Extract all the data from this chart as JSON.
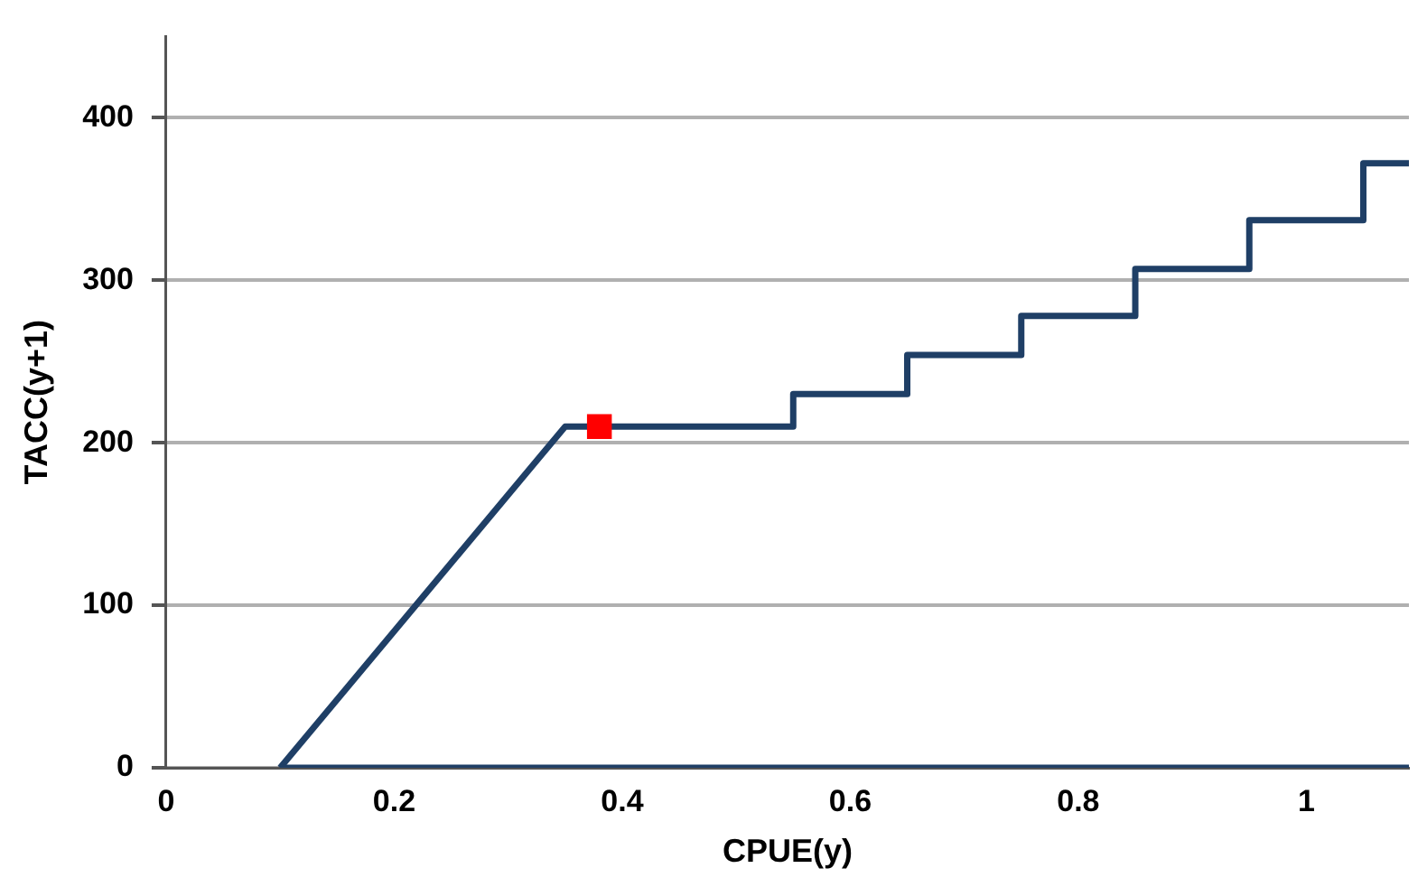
{
  "chart_data": {
    "type": "line",
    "xlabel": "CPUE(y)",
    "ylabel": "TACC(y+1)",
    "xlim": [
      0,
      1.09
    ],
    "xticks": [
      0,
      {
        "value": 0.2,
        "label": "0.2"
      },
      {
        "value": 0.4,
        "label": "0.4"
      },
      {
        "value": 0.6,
        "label": "0.6"
      },
      {
        "value": 0.8,
        "label": "0.8"
      },
      1
    ],
    "ylim": [
      0,
      450
    ],
    "yticks": [
      0,
      100,
      200,
      300,
      400
    ],
    "grid": "y",
    "legend": false,
    "marker": "none",
    "line_style": "solid",
    "series": [
      {
        "type": "line",
        "color": "#1f3f66",
        "x": [
          0.1,
          1.09
        ],
        "values": [
          0,
          0
        ]
      },
      {
        "type": "line",
        "color": "#1f3f66",
        "x": [
          0.1,
          0.35,
          0.55,
          0.55,
          0.65,
          0.65,
          0.75,
          0.75,
          0.85,
          0.85,
          0.95,
          0.95,
          1.05,
          1.05,
          1.09
        ],
        "values": [
          0,
          210,
          210,
          230,
          230,
          254,
          254,
          278,
          278,
          307,
          307,
          337,
          337,
          372,
          372
        ]
      },
      {
        "type": "scatter",
        "color": "#ff0000",
        "marker": "square",
        "x": [
          0.38
        ],
        "values": [
          210
        ]
      }
    ]
  }
}
